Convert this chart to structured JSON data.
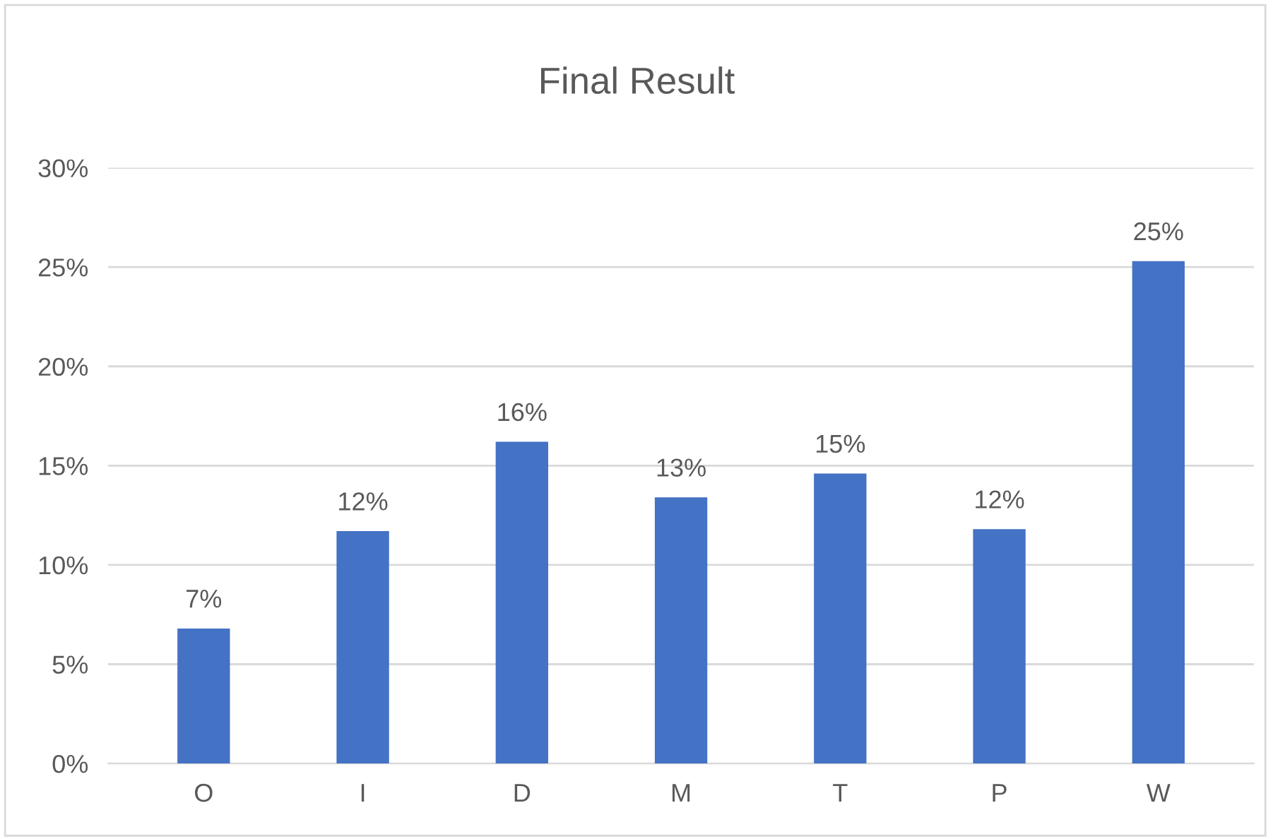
{
  "chart_data": {
    "type": "bar",
    "title": "Final Result",
    "categories": [
      "O",
      "I",
      "D",
      "M",
      "T",
      "P",
      "W"
    ],
    "values": [
      6.8,
      11.7,
      16.2,
      13.4,
      14.6,
      11.8,
      25.3
    ],
    "value_labels": [
      "7%",
      "12%",
      "16%",
      "13%",
      "15%",
      "12%",
      "25%"
    ],
    "color": "#4472c4",
    "ylim": [
      0,
      30
    ],
    "yticks": [
      {
        "value": 0,
        "label": "0%"
      },
      {
        "value": 5,
        "label": "5%"
      },
      {
        "value": 10,
        "label": "10%"
      },
      {
        "value": 15,
        "label": "15%"
      },
      {
        "value": 20,
        "label": "20%"
      },
      {
        "value": 25,
        "label": "25%"
      },
      {
        "value": 30,
        "label": "30%"
      }
    ],
    "grid": "y",
    "legend": false
  }
}
